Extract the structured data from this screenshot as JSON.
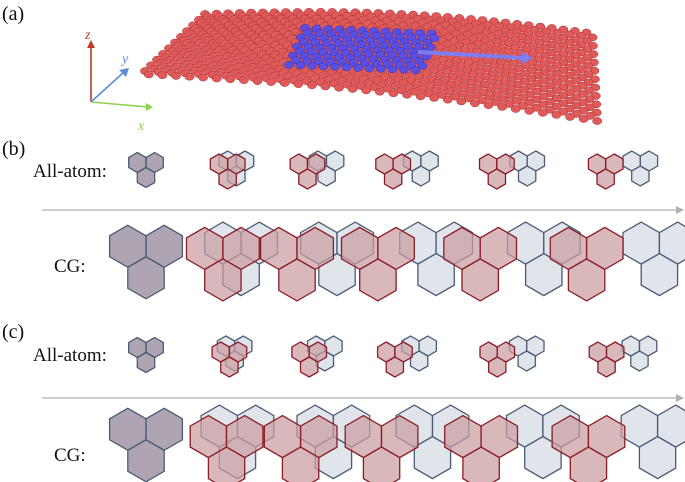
{
  "panels": {
    "a": {
      "label": "(a)",
      "axes": {
        "x": "x",
        "y": "y",
        "z": "z"
      }
    },
    "b": {
      "label": "(b)",
      "row1": "All-atom:",
      "row2": "CG:"
    },
    "c": {
      "label": "(c)",
      "row1": "All-atom:",
      "row2": "CG:"
    }
  },
  "colors": {
    "axis_x": "#8cd24a",
    "axis_y": "#5b8fd8",
    "axis_z": "#c0392b",
    "sheet_atom": "#e05a5a",
    "sheet_atom_dark": "#a82e2e",
    "moving_flake": "#5a4fe0",
    "arrow": "#7f7ef0",
    "red_fill": "#c99ca1",
    "red_stroke": "#8a1c24",
    "blue_fill": "#d4d9e3",
    "blue_stroke": "#4b5b75",
    "overlap_fill": "#8f8194",
    "time_arrow": "#b0b0b0"
  },
  "icons": [
    "bilayer-sheet-icon",
    "axis-triad-icon",
    "hexagon-flake-icon",
    "time-arrow-icon"
  ]
}
